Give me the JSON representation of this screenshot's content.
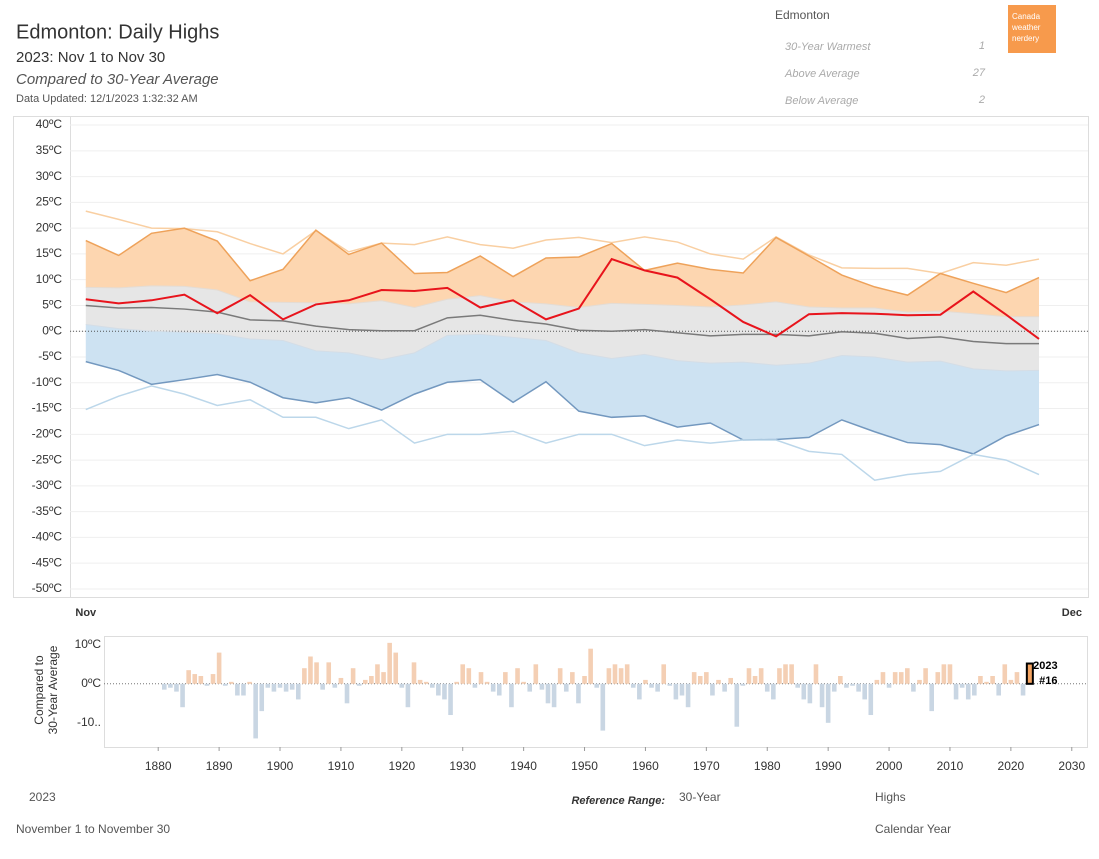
{
  "header": {
    "title": "Edmonton: Daily Highs",
    "subtitle": "2023: Nov 1 to Nov 30",
    "comparison": "Compared to 30-Year Average",
    "updated": "Data Updated: 12/1/2023 1:32:32 AM"
  },
  "stats": {
    "city": "Edmonton",
    "rows": [
      {
        "label": "30-Year Warmest",
        "value": 1
      },
      {
        "label": "Above Average",
        "value": 27
      },
      {
        "label": "Below Average",
        "value": 2
      }
    ]
  },
  "logo": [
    "Canada",
    "weather",
    "nerdery"
  ],
  "footer": {
    "year": "2023",
    "range": "November 1 to November 30",
    "reference_label": "Reference Range:",
    "reference": "30-Year",
    "measure": "Highs",
    "period": "Calendar Year"
  },
  "chart_data": [
    {
      "type": "line",
      "x": [
        1,
        2,
        3,
        4,
        5,
        6,
        7,
        8,
        9,
        10,
        11,
        12,
        13,
        14,
        15,
        16,
        17,
        18,
        19,
        20,
        21,
        22,
        23,
        24,
        25,
        26,
        27,
        28,
        29,
        30
      ],
      "xlim": [
        0.52,
        31.49
      ],
      "xticks": [
        {
          "value": 1,
          "label": "Nov"
        },
        {
          "value": 31,
          "label": "Dec"
        }
      ],
      "ylim": [
        -51.56,
        41.56
      ],
      "yticks": [
        {
          "value": 40,
          "label": "40ºC"
        },
        {
          "value": 35,
          "label": "35ºC"
        },
        {
          "value": 30,
          "label": "30ºC"
        },
        {
          "value": 25,
          "label": "25ºC"
        },
        {
          "value": 20,
          "label": "20ºC"
        },
        {
          "value": 15,
          "label": "15ºC"
        },
        {
          "value": 10,
          "label": "10ºC"
        },
        {
          "value": 5,
          "label": "5ºC"
        },
        {
          "value": 0,
          "label": "0ºC"
        },
        {
          "value": -5,
          "label": "-5ºC"
        },
        {
          "value": -10,
          "label": "-10ºC"
        },
        {
          "value": -15,
          "label": "-15ºC"
        },
        {
          "value": -20,
          "label": "-20ºC"
        },
        {
          "value": -25,
          "label": "-25ºC"
        },
        {
          "value": -30,
          "label": "-30ºC"
        },
        {
          "value": -35,
          "label": "-35ºC"
        },
        {
          "value": -40,
          "label": "-40ºC"
        },
        {
          "value": -45,
          "label": "-45ºC"
        },
        {
          "value": -50,
          "label": "-50ºC"
        }
      ],
      "grid": true,
      "series": [
        {
          "color": "#f9cfa2",
          "width": 1.5,
          "values": [
            23.3,
            21.7,
            20,
            19.9,
            19.3,
            17,
            15,
            19.5,
            15.4,
            17.1,
            16.8,
            18.3,
            16.8,
            16.1,
            17.7,
            18.2,
            17.2,
            18.3,
            17.3,
            15,
            14,
            18.3,
            14.8,
            12.3,
            12.2,
            12.2,
            11.2,
            13.3,
            12.8,
            14
          ]
        },
        {
          "color": "#eea25a",
          "width": 1.5,
          "fill": "#fdd6b0",
          "values": [
            17.6,
            14.7,
            19,
            20,
            17.5,
            9.8,
            12,
            19.6,
            14.9,
            17.1,
            11.2,
            11.4,
            14.6,
            10.6,
            14.2,
            14.4,
            17,
            11.8,
            13.2,
            12,
            11.3,
            18.2,
            14.6,
            10.9,
            8.6,
            7,
            11.2,
            9.3,
            7.5,
            10.4
          ]
        },
        {
          "color": "#e4dcd4",
          "width": 1,
          "fill": "#e6e6e6",
          "values": [
            8.5,
            8.4,
            8.8,
            8.7,
            8,
            5.7,
            5.6,
            5.5,
            5.3,
            5.9,
            4.6,
            6.2,
            6.9,
            5.7,
            5.3,
            4.6,
            5.4,
            5.2,
            5,
            4.7,
            5.1,
            5.7,
            4.7,
            4.5,
            4.5,
            3.7,
            3.9,
            3.4,
            2.8,
            2.8
          ]
        },
        {
          "color": "#d4dde6",
          "width": 1,
          "fill": "#cde2f2",
          "values": [
            1.3,
            0.5,
            0,
            -0.2,
            -0.5,
            -1.5,
            -1.8,
            -3.8,
            -4.2,
            -5.5,
            -4.2,
            -0.8,
            -0.6,
            -1.2,
            -1.8,
            -4.2,
            -5.3,
            -4.5,
            -5.7,
            -6.2,
            -6,
            -6.6,
            -6.2,
            -4.7,
            -5,
            -6,
            -5.8,
            -7.3,
            -7.7,
            -7.6
          ]
        },
        {
          "color": "#7398bf",
          "width": 1.5,
          "values": [
            -5.9,
            -7.6,
            -10.3,
            -9.4,
            -8.4,
            -9.9,
            -12.9,
            -13.9,
            -12.9,
            -15.3,
            -12.2,
            -9.9,
            -9.4,
            -13.8,
            -9.8,
            -15.5,
            -16.7,
            -16.4,
            -18.6,
            -17.8,
            -21.1,
            -21,
            -20.6,
            -17.2,
            -19.5,
            -21.6,
            -22,
            -23.8,
            -20.3,
            -18.1
          ]
        },
        {
          "color": "#bcd7ea",
          "width": 1.5,
          "values": [
            -15.2,
            -12.6,
            -10.6,
            -12.2,
            -14.4,
            -13.3,
            -16.7,
            -16.7,
            -18.9,
            -17.2,
            -21.7,
            -20,
            -20,
            -19.4,
            -21.7,
            -20,
            -20,
            -22.2,
            -21.1,
            -21.7,
            -21.1,
            -21.1,
            -23.3,
            -23.9,
            -28.9,
            -27.8,
            -27.2,
            -23.9,
            -25,
            -27.8
          ]
        },
        {
          "color": "#7a7a7a",
          "width": 1.5,
          "values": [
            5,
            4.5,
            4.6,
            4.3,
            3.7,
            2.2,
            2,
            1,
            0.3,
            0.1,
            0.1,
            2.6,
            3.1,
            2.1,
            1.4,
            0.2,
            0,
            0.3,
            -0.3,
            -0.9,
            -0.6,
            -0.6,
            -0.9,
            -0.1,
            -0.4,
            -1.4,
            -1.1,
            -2,
            -2.4,
            -2.4
          ]
        },
        {
          "color": "#e8141c",
          "width": 2,
          "values": [
            6.2,
            5.4,
            6,
            7.1,
            3.5,
            7,
            2.3,
            5.2,
            6,
            8,
            7.8,
            8.4,
            4.6,
            6,
            2.3,
            4.4,
            14,
            11.8,
            10.4,
            6.2,
            1.8,
            -1,
            3.3,
            3.5,
            3.4,
            3.1,
            3.2,
            7.7,
            3.2,
            -1.5
          ]
        }
      ]
    },
    {
      "type": "bar",
      "axis_label": [
        "Compared to",
        "30-Year Average"
      ],
      "x": [
        1881,
        1882,
        1883,
        1884,
        1885,
        1886,
        1887,
        1888,
        1889,
        1890,
        1891,
        1892,
        1893,
        1894,
        1895,
        1896,
        1897,
        1898,
        1899,
        1900,
        1901,
        1902,
        1903,
        1904,
        1905,
        1906,
        1907,
        1908,
        1909,
        1910,
        1911,
        1912,
        1913,
        1914,
        1915,
        1916,
        1917,
        1918,
        1919,
        1920,
        1921,
        1922,
        1923,
        1924,
        1925,
        1926,
        1927,
        1928,
        1929,
        1930,
        1931,
        1932,
        1933,
        1934,
        1935,
        1936,
        1937,
        1938,
        1939,
        1940,
        1941,
        1942,
        1943,
        1944,
        1945,
        1946,
        1947,
        1948,
        1949,
        1950,
        1951,
        1952,
        1953,
        1954,
        1955,
        1956,
        1957,
        1958,
        1959,
        1960,
        1961,
        1962,
        1963,
        1964,
        1965,
        1966,
        1967,
        1968,
        1969,
        1970,
        1971,
        1972,
        1973,
        1974,
        1975,
        1976,
        1977,
        1978,
        1979,
        1980,
        1981,
        1982,
        1983,
        1984,
        1985,
        1986,
        1987,
        1988,
        1989,
        1990,
        1991,
        1992,
        1993,
        1994,
        1995,
        1996,
        1997,
        1998,
        1999,
        2000,
        2001,
        2002,
        2003,
        2004,
        2005,
        2006,
        2007,
        2008,
        2009,
        2010,
        2011,
        2012,
        2013,
        2014,
        2015,
        2016,
        2017,
        2018,
        2019,
        2020,
        2021,
        2022,
        2023
      ],
      "values": [
        -1.5,
        -1,
        -2,
        -6,
        3.5,
        2.5,
        2,
        -0.5,
        2.5,
        8,
        -0.5,
        0.5,
        -3,
        -3,
        0.5,
        -14,
        -7,
        -1,
        -2,
        -1,
        -2,
        -1.5,
        -4,
        4,
        7,
        5.5,
        -1.5,
        5.5,
        -1,
        1.5,
        -5,
        4,
        -0.5,
        1,
        2,
        5,
        3,
        10.5,
        8,
        -1,
        -6,
        5.5,
        1,
        0.5,
        -1,
        -3,
        -4,
        -8,
        0.5,
        5,
        4,
        -1,
        3,
        0.5,
        -2,
        -3,
        3,
        -6,
        4,
        0.5,
        -2,
        5,
        -1.5,
        -5,
        -6,
        4,
        -2,
        3,
        -5,
        2,
        9,
        -1,
        -12,
        4,
        5,
        4,
        5,
        -1,
        -4,
        1,
        -1,
        -2,
        5,
        -0.5,
        -4,
        -3,
        -6,
        3,
        2,
        3,
        -3,
        1,
        -2,
        1.5,
        -11,
        -0.5,
        4,
        2,
        4,
        -2,
        -4,
        4,
        5,
        5,
        -1,
        -4,
        -5,
        5,
        -6,
        -10,
        -2,
        2,
        -1,
        -0.5,
        -2,
        -4,
        -8,
        1,
        3,
        -1,
        3,
        3,
        4,
        -2,
        1,
        4,
        -7,
        3,
        5,
        5,
        -4,
        -1,
        -4,
        -3,
        2,
        0.5,
        2,
        -3,
        5,
        1,
        3,
        -3,
        5.2
      ],
      "pos_color": "#f4cfb4",
      "neg_color": "#c9d6e3",
      "highlight_color": "#f4a462",
      "annotation": "#16",
      "xlim": [
        1871.1,
        2032.5
      ],
      "xticks": [
        1880,
        1890,
        1900,
        1910,
        1920,
        1930,
        1940,
        1950,
        1960,
        1970,
        1980,
        1990,
        2000,
        2010,
        2020,
        2030
      ],
      "ylim": [
        -16.2,
        12
      ],
      "yticks": [
        {
          "value": 10,
          "label": "10ºC"
        },
        {
          "value": 0,
          "label": "0ºC"
        },
        {
          "value": -10,
          "label": "-10.."
        }
      ]
    }
  ]
}
